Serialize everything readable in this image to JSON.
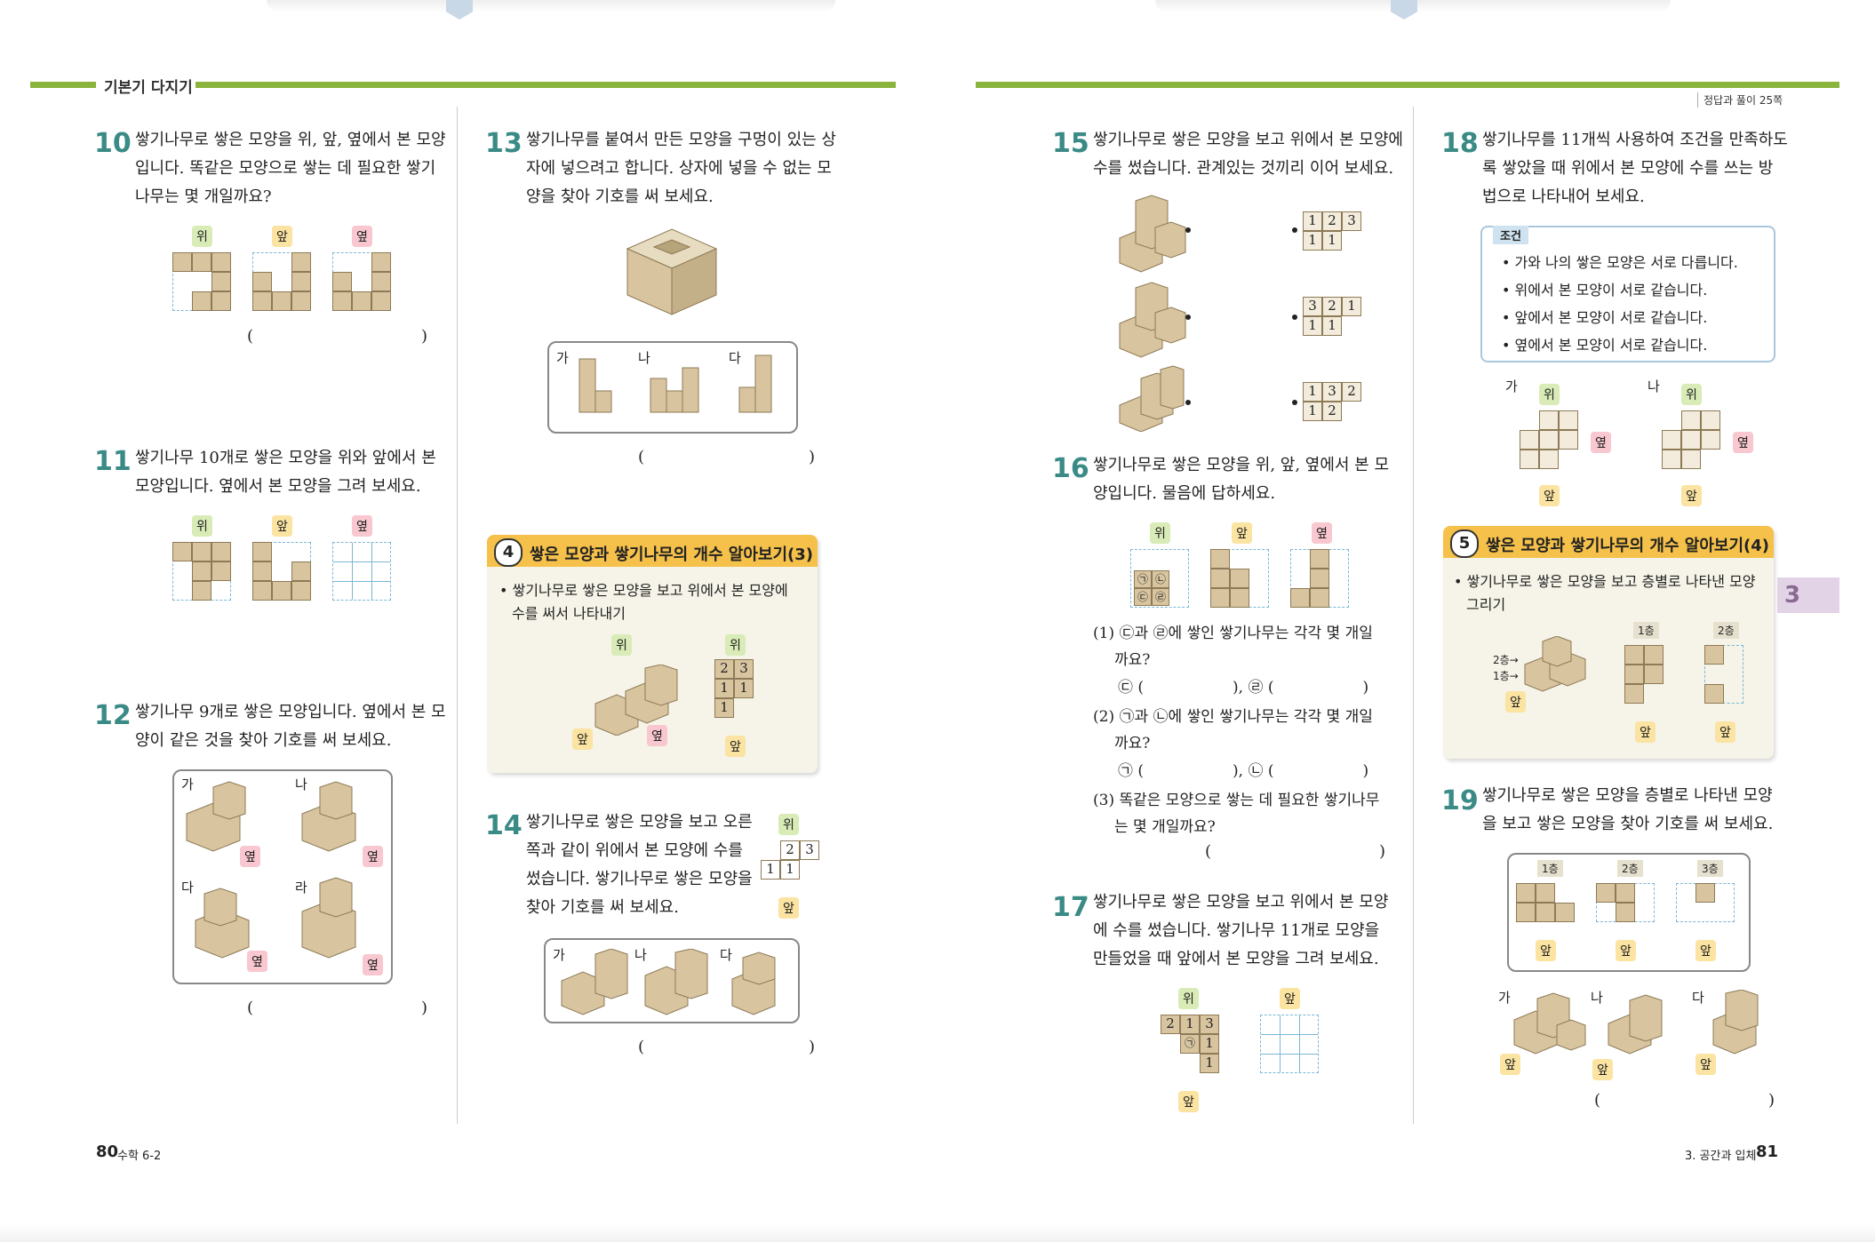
{
  "header": {
    "section_title": "기본기 다지기",
    "answer_ref": "정답과 풀이 25쪽"
  },
  "labels": {
    "top": "위",
    "front": "앞",
    "side": "옆",
    "open": "(",
    "close": ")",
    "ga": "가",
    "na": "나",
    "da": "다",
    "ra": "라"
  },
  "left_page": {
    "q10": {
      "num": "10",
      "text": [
        "쌓기나무로 쌓은 모양을 위, 앞, 옆에서 본 모양",
        "입니다. 똑같은 모양으로 쌓는 데 필요한 쌓기",
        "나무는 몇 개일까요?"
      ]
    },
    "q11": {
      "num": "11",
      "text": [
        "쌓기나무 10개로 쌓은 모양을 위와 앞에서 본",
        "모양입니다. 옆에서 본 모양을 그려 보세요."
      ]
    },
    "q12": {
      "num": "12",
      "text": [
        "쌓기나무 9개로 쌓은 모양입니다. 옆에서 본 모",
        "양이 같은 것을 찾아 기호를 써 보세요."
      ]
    },
    "q13": {
      "num": "13",
      "text": [
        "쌓기나무를 붙여서 만든 모양을 구멍이 있는 상",
        "자에 넣으려고 합니다. 상자에 넣을 수 없는 모",
        "양을 찾아 기호를 써 보세요."
      ]
    },
    "concept4": {
      "num": "4",
      "title": "쌓은 모양과 쌓기나무의 개수 알아보기(3)",
      "bullet": [
        "• 쌓기나무로 쌓은 모양을 보고 위에서 본 모양에",
        "수를 써서 나타내기"
      ],
      "grid": [
        [
          "2",
          "3"
        ],
        [
          "1",
          "1"
        ],
        [
          "1",
          ""
        ]
      ]
    },
    "q14": {
      "num": "14",
      "text": [
        "쌓기나무로 쌓은 모양을 보고 오른",
        "쪽과 같이 위에서 본 모양에 수를",
        "썼습니다. 쌓기나무로 쌓은 모양을",
        "찾아 기호를 써 보세요."
      ],
      "grid": [
        [
          "",
          "2",
          "3"
        ],
        [
          "1",
          "1",
          ""
        ]
      ]
    },
    "footer": {
      "page": "80",
      "book": "수학 6-2"
    }
  },
  "right_page": {
    "q15": {
      "num": "15",
      "text": [
        "쌓기나무로 쌓은 모양을 보고 위에서 본 모양에",
        "수를 썼습니다. 관계있는 것끼리 이어 보세요."
      ],
      "grids": [
        [
          [
            "1",
            "2",
            "3"
          ],
          [
            "1",
            "1",
            ""
          ]
        ],
        [
          [
            "3",
            "2",
            "1"
          ],
          [
            "1",
            "1",
            ""
          ]
        ],
        [
          [
            "1",
            "3",
            "2"
          ],
          [
            "1",
            "2",
            ""
          ]
        ]
      ]
    },
    "q16": {
      "num": "16",
      "text": [
        "쌓기나무로 쌓은 모양을 위, 앞, 옆에서 본 모",
        "양입니다. 물음에 답하세요."
      ],
      "top_marks": [
        "㉠",
        "㉡",
        "㉢",
        "㉣"
      ],
      "sub1": [
        "(1) ㉢과 ㉣에 쌓인 쌓기나무는 각각 몇 개일",
        "까요?"
      ],
      "sub1_ans": [
        "㉢ (",
        "), ㉣ (",
        ")"
      ],
      "sub2": [
        "(2) ㉠과 ㉡에 쌓인 쌓기나무는 각각 몇 개일",
        "까요?"
      ],
      "sub2_ans": [
        "㉠ (",
        "), ㉡ (",
        ")"
      ],
      "sub3": [
        "(3) 똑같은 모양으로 쌓는 데 필요한 쌓기나무",
        "는 몇 개일까요?"
      ]
    },
    "q17": {
      "num": "17",
      "text": [
        "쌓기나무로 쌓은 모양을 보고 위에서 본 모양",
        "에 수를 썼습니다. 쌓기나무 11개로 모양을",
        "만들었을 때 앞에서 본 모양을 그려 보세요."
      ],
      "grid": [
        [
          "2",
          "1",
          "3"
        ],
        [
          "",
          "㉠",
          "1"
        ],
        [
          "",
          "",
          "1"
        ]
      ]
    },
    "q18": {
      "num": "18",
      "text": [
        "쌓기나무를 11개씩 사용하여 조건을 만족하도",
        "록 쌓았을 때 위에서 본 모양에 수를 쓰는 방",
        "법으로 나타내어 보세요."
      ],
      "condition_label": "조건",
      "conditions": [
        "• 가와 나의 쌓은 모양은 서로 다릅니다.",
        "• 위에서 본 모양이 서로 같습니다.",
        "• 앞에서 본 모양이 서로 같습니다.",
        "• 옆에서 본 모양이 서로 같습니다."
      ]
    },
    "concept5": {
      "num": "5",
      "title": "쌓은 모양과 쌓기나무의 개수 알아보기(4)",
      "bullet": [
        "• 쌓기나무로 쌓은 모양을 보고 층별로 나타낸 모양",
        "그리기"
      ],
      "floor1": "1층",
      "floor2": "2층",
      "f2_arrow": "2층→",
      "f1_arrow": "1층→"
    },
    "q19": {
      "num": "19",
      "text": [
        "쌓기나무로 쌓은 모양을 층별로 나타낸 모양",
        "을 보고 쌓은 모양을 찾아 기호를 써 보세요."
      ],
      "floors": [
        "1층",
        "2층",
        "3층"
      ]
    },
    "chapter_tab": "3",
    "footer": {
      "chapter": "3. 공간과 입체",
      "page": "81"
    }
  }
}
